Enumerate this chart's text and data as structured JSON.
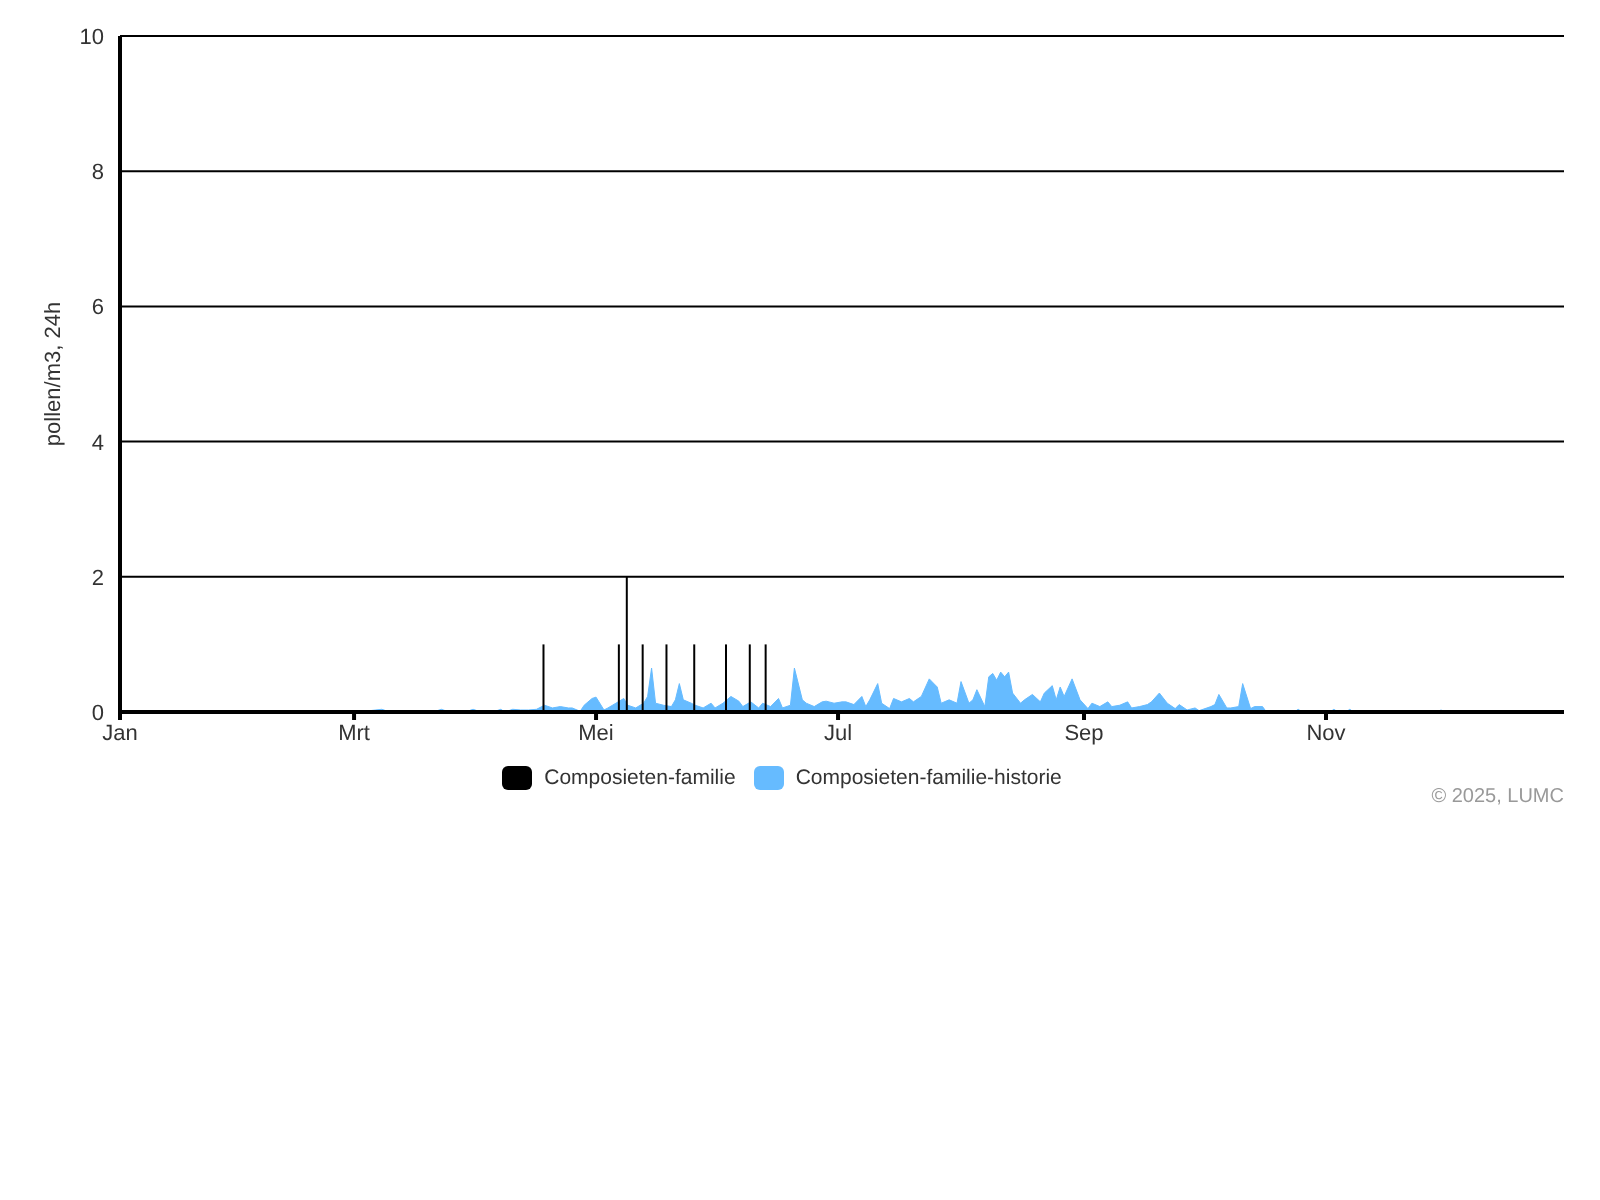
{
  "chart_data": {
    "type": "bar",
    "ylabel": "pollen/m3, 24h",
    "xlim": [
      "--01-01",
      "--12-31"
    ],
    "xticks": [
      {
        "value": "--01-01",
        "label": "Jan"
      },
      {
        "value": "--03-01",
        "label": "Mrt"
      },
      {
        "value": "--05-01",
        "label": "Mei"
      },
      {
        "value": "--07-01",
        "label": "Jul"
      },
      {
        "value": "--09-01",
        "label": "Sep"
      },
      {
        "value": "--11-01",
        "label": "Nov"
      }
    ],
    "ylim": [
      0,
      10
    ],
    "yticks": [
      0,
      2,
      4,
      6,
      8,
      10
    ],
    "grid": "y",
    "legend": "bottom",
    "annotations": [
      "© 2025, LUMC"
    ],
    "series": [
      {
        "name": "Composieten-familie",
        "color": "#000000",
        "x": [
          "--04-18",
          "--05-07",
          "--05-09",
          "--05-13",
          "--05-19",
          "--05-26",
          "--06-03",
          "--06-09",
          "--06-13"
        ],
        "values": [
          1,
          1,
          2,
          1,
          1,
          1,
          1,
          1,
          1
        ]
      },
      {
        "name": "Composieten-familie-historie",
        "type": "area",
        "color": "#66bbff",
        "x": [
          "--03-02",
          "--03-08",
          "--03-10",
          "--03-21",
          "--03-23",
          "--03-25",
          "--03-29",
          "--03-31",
          "--04-02",
          "--04-05",
          "--04-07",
          "--04-08",
          "--04-10",
          "--04-12",
          "--04-14",
          "--04-16",
          "--04-18",
          "--04-20",
          "--04-22",
          "--04-24",
          "--04-25",
          "--04-27",
          "--04-28",
          "--04-30",
          "--05-01",
          "--05-03",
          "--05-04",
          "--05-06",
          "--05-08",
          "--05-09",
          "--05-11",
          "--05-13",
          "--05-14",
          "--05-15",
          "--05-16",
          "--05-18",
          "--05-20",
          "--05-21",
          "--05-22",
          "--05-23",
          "--05-25",
          "--05-26",
          "--05-28",
          "--05-30",
          "--05-31",
          "--06-02",
          "--06-04",
          "--06-06",
          "--06-07",
          "--06-09",
          "--06-11",
          "--06-12",
          "--06-14",
          "--06-16",
          "--06-17",
          "--06-19",
          "--06-20",
          "--06-22",
          "--06-23",
          "--06-25",
          "--06-27",
          "--06-28",
          "--06-30",
          "--07-02",
          "--07-03",
          "--07-05",
          "--07-07",
          "--07-08",
          "--07-09",
          "--07-11",
          "--07-12",
          "--07-14",
          "--07-15",
          "--07-17",
          "--07-19",
          "--07-20",
          "--07-22",
          "--07-24",
          "--07-26",
          "--07-27",
          "--07-29",
          "--07-31",
          "--08-01",
          "--08-03",
          "--08-04",
          "--08-05",
          "--08-07",
          "--08-08",
          "--08-09",
          "--08-10",
          "--08-11",
          "--08-12",
          "--08-13",
          "--08-14",
          "--08-16",
          "--08-17",
          "--08-19",
          "--08-21",
          "--08-22",
          "--08-24",
          "--08-25",
          "--08-26",
          "--08-27",
          "--08-29",
          "--08-31",
          "--09-02",
          "--09-03",
          "--09-05",
          "--09-07",
          "--09-08",
          "--09-10",
          "--09-12",
          "--09-13",
          "--09-15",
          "--09-17",
          "--09-18",
          "--09-20",
          "--09-22",
          "--09-24",
          "--09-25",
          "--09-27",
          "--09-29",
          "--09-30",
          "--10-03",
          "--10-04",
          "--10-05",
          "--10-07",
          "--10-08",
          "--10-10",
          "--10-11",
          "--10-13",
          "--10-14",
          "--10-16",
          "--10-17",
          "--10-24",
          "--10-25",
          "--10-26",
          "--11-02",
          "--11-03",
          "--11-04",
          "--11-06",
          "--11-07",
          "--11-08",
          "--11-29",
          "--11-30",
          "--12-01"
        ],
        "values": [
          0,
          0.04,
          0,
          0,
          0.04,
          0,
          0,
          0.04,
          0,
          0,
          0.04,
          0,
          0.04,
          0.03,
          0.03,
          0.04,
          0.1,
          0.06,
          0.08,
          0.06,
          0.06,
          0.01,
          0.1,
          0.2,
          0.22,
          0.03,
          0.06,
          0.13,
          0.2,
          0.1,
          0.06,
          0.13,
          0.23,
          0.65,
          0.13,
          0.1,
          0.08,
          0.18,
          0.42,
          0.18,
          0.13,
          0.1,
          0.06,
          0.13,
          0.06,
          0.13,
          0.23,
          0.16,
          0.08,
          0.15,
          0.06,
          0.13,
          0.08,
          0.2,
          0.06,
          0.1,
          0.65,
          0.18,
          0.13,
          0.08,
          0.15,
          0.16,
          0.13,
          0.15,
          0.15,
          0.11,
          0.23,
          0.08,
          0.18,
          0.42,
          0.13,
          0.05,
          0.2,
          0.15,
          0.2,
          0.15,
          0.23,
          0.49,
          0.37,
          0.13,
          0.18,
          0.13,
          0.45,
          0.13,
          0.18,
          0.33,
          0.08,
          0.52,
          0.57,
          0.47,
          0.59,
          0.52,
          0.59,
          0.28,
          0.13,
          0.18,
          0.26,
          0.15,
          0.28,
          0.39,
          0.18,
          0.37,
          0.23,
          0.49,
          0.18,
          0.05,
          0.13,
          0.08,
          0.15,
          0.08,
          0.1,
          0.15,
          0.06,
          0.08,
          0.11,
          0.15,
          0.28,
          0.13,
          0.05,
          0.11,
          0.03,
          0.06,
          0.02,
          0.08,
          0.11,
          0.26,
          0.06,
          0.06,
          0.08,
          0.42,
          0.05,
          0.08,
          0.08,
          0,
          0,
          0.04,
          0,
          0,
          0.04,
          0,
          0,
          0.04,
          0,
          0,
          0.03,
          0
        ]
      }
    ]
  }
}
